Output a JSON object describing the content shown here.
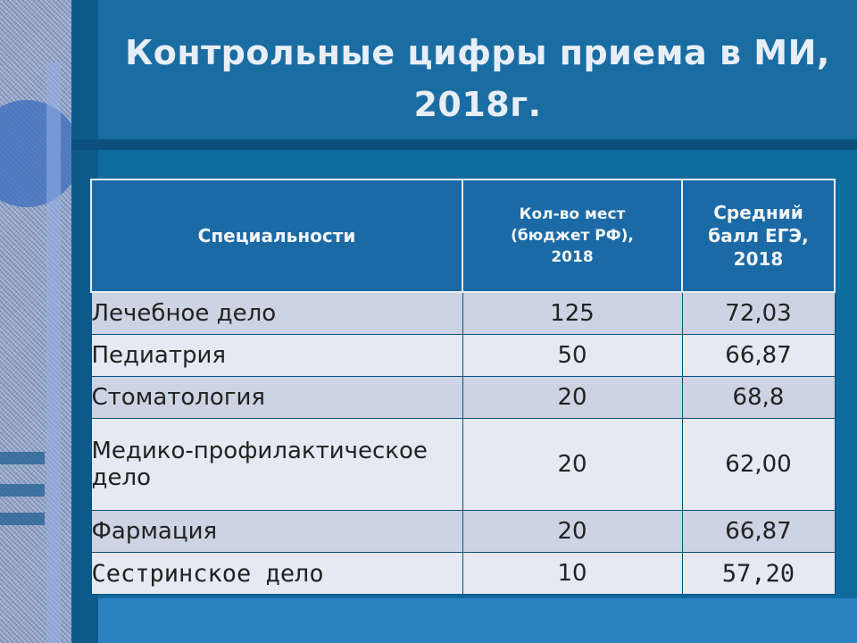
{
  "slide": {
    "title_line1": "Контрольные цифры приема в МИ,",
    "title_line2": "2018г."
  },
  "table": {
    "headers": {
      "specialty": "Специальности",
      "places_l1": "Кол-во мест",
      "places_l2": "(бюджет РФ),",
      "places_l3": "2018",
      "score_l1": "Средний",
      "score_l2": "балл ЕГЭ,",
      "score_l3": "2018"
    },
    "rows": [
      {
        "name": "Лечебное дело",
        "places": "125",
        "score": "72,03"
      },
      {
        "name": "Педиатрия",
        "places": "50",
        "score": "66,87"
      },
      {
        "name": "Стоматология",
        "places": "20",
        "score": "68,8"
      },
      {
        "name": "Медико-профилактическое дело",
        "places": "20",
        "score": "62,00"
      },
      {
        "name": "Фармация",
        "places": "20",
        "score": "66,87"
      },
      {
        "name": "Сестринское дело",
        "places": "10",
        "score": "57,20"
      }
    ]
  },
  "colors": {
    "background": "#1a6da3",
    "header_fill": "#1b6aa6",
    "row_light": "#e6e9f1",
    "row_dark": "#ccd3e2"
  }
}
